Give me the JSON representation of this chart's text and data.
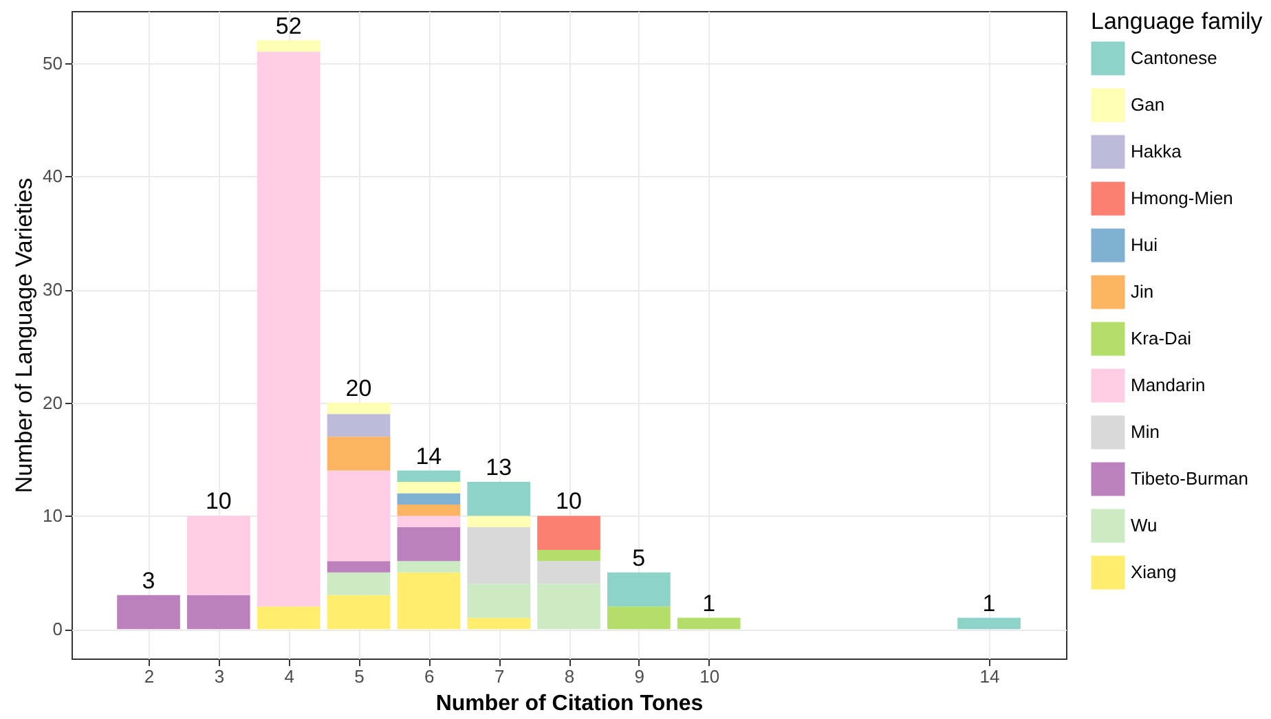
{
  "chart_data": {
    "type": "bar",
    "stacked": true,
    "xlabel": "Number of Citation Tones",
    "ylabel": "Number of Language Varieties",
    "legend_title": "Language family",
    "legend": "right",
    "grid": true,
    "x": [
      2,
      3,
      4,
      5,
      6,
      7,
      8,
      9,
      10,
      14
    ],
    "xlim": [
      0.9,
      15.1
    ],
    "xticks": [
      2,
      3,
      4,
      5,
      6,
      7,
      8,
      9,
      10,
      14
    ],
    "ylim": [
      -2.6,
      54.6
    ],
    "yticks": [
      0,
      10,
      20,
      30,
      40,
      50
    ],
    "totals": [
      "3",
      "10",
      "52",
      "20",
      "14",
      "13",
      "10",
      "5",
      "1",
      "1"
    ],
    "series": [
      {
        "name": "Xiang",
        "color": "#ffed6f",
        "values": [
          null,
          null,
          2,
          3,
          5,
          1,
          null,
          null,
          null,
          null
        ]
      },
      {
        "name": "Wu",
        "color": "#ccebc5",
        "values": [
          null,
          null,
          null,
          2,
          1,
          3,
          4,
          null,
          null,
          null
        ]
      },
      {
        "name": "Tibeto-Burman",
        "color": "#bc80bd",
        "values": [
          3,
          3,
          null,
          1,
          3,
          null,
          null,
          null,
          null,
          null
        ]
      },
      {
        "name": "Min",
        "color": "#d9d9d9",
        "values": [
          null,
          null,
          null,
          null,
          null,
          5,
          2,
          null,
          null,
          null
        ]
      },
      {
        "name": "Mandarin",
        "color": "#fccde5",
        "values": [
          null,
          7,
          49,
          8,
          1,
          null,
          null,
          null,
          null,
          null
        ]
      },
      {
        "name": "Kra-Dai",
        "color": "#b3de69",
        "values": [
          null,
          null,
          null,
          null,
          null,
          null,
          1,
          2,
          1,
          null
        ]
      },
      {
        "name": "Jin",
        "color": "#fdb462",
        "values": [
          null,
          null,
          null,
          3,
          1,
          null,
          null,
          null,
          null,
          null
        ]
      },
      {
        "name": "Hui",
        "color": "#80b1d3",
        "values": [
          null,
          null,
          null,
          null,
          1,
          null,
          null,
          null,
          null,
          null
        ]
      },
      {
        "name": "Hmong-Mien",
        "color": "#fb8072",
        "values": [
          null,
          null,
          null,
          null,
          null,
          null,
          3,
          null,
          null,
          null
        ]
      },
      {
        "name": "Hakka",
        "color": "#bebada",
        "values": [
          null,
          null,
          null,
          2,
          null,
          null,
          null,
          null,
          null,
          null
        ]
      },
      {
        "name": "Gan",
        "color": "#ffffb3",
        "values": [
          null,
          null,
          1,
          1,
          1,
          1,
          null,
          null,
          null,
          null
        ]
      },
      {
        "name": "Cantonese",
        "color": "#8dd3c7",
        "values": [
          null,
          null,
          null,
          null,
          1,
          3,
          null,
          3,
          null,
          1
        ]
      }
    ]
  }
}
